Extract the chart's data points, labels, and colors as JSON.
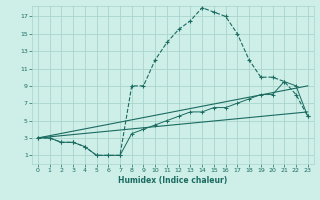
{
  "xlabel": "Humidex (Indice chaleur)",
  "bg_color": "#ceeee8",
  "grid_color": "#aad4cc",
  "line_color": "#1a6b60",
  "xlim": [
    -0.5,
    23.5
  ],
  "ylim": [
    0,
    18.2
  ],
  "xticks": [
    0,
    1,
    2,
    3,
    4,
    5,
    6,
    7,
    8,
    9,
    10,
    11,
    12,
    13,
    14,
    15,
    16,
    17,
    18,
    19,
    20,
    21,
    22,
    23
  ],
  "yticks": [
    1,
    3,
    5,
    7,
    9,
    11,
    13,
    15,
    17
  ],
  "series_main_x": [
    0,
    1,
    2,
    3,
    4,
    5,
    6,
    7,
    8,
    9,
    10,
    11,
    12,
    13,
    14,
    15,
    16,
    17,
    18,
    19,
    20,
    21,
    22,
    23
  ],
  "series_main_y": [
    3,
    3,
    2.5,
    2.5,
    2,
    1,
    1,
    1,
    9,
    9,
    12,
    14,
    15.5,
    16.5,
    18,
    17.5,
    17,
    15,
    12,
    10,
    10,
    9.5,
    8,
    5.5
  ],
  "series_lower_x": [
    0,
    1,
    2,
    3,
    4,
    5,
    6,
    7,
    8,
    9,
    10,
    11,
    12,
    13,
    14,
    15,
    16,
    17,
    18,
    19,
    20,
    21,
    22,
    23
  ],
  "series_lower_y": [
    3,
    3,
    2.5,
    2.5,
    2,
    1,
    1,
    1,
    3.5,
    4,
    4.5,
    5,
    5.5,
    6,
    6,
    6.5,
    6.5,
    7,
    7.5,
    8,
    8,
    9.5,
    9,
    5.5
  ],
  "series_line1_x": [
    0,
    23
  ],
  "series_line1_y": [
    3,
    9
  ],
  "series_line2_x": [
    0,
    23
  ],
  "series_line2_y": [
    3,
    6
  ]
}
